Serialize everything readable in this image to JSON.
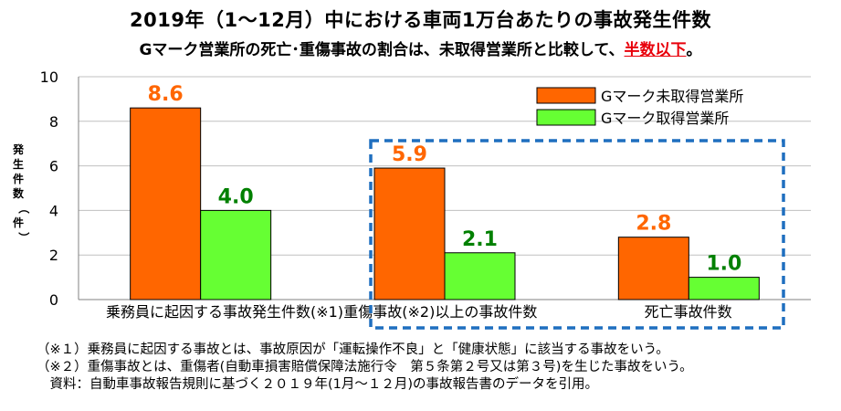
{
  "title": "2019年（1～12月）中における車両1万台あたりの事故発生件数",
  "subtitle_prefix": "Gマーク営業所の死亡･重傷事故の割合は、未取得営業所と比較して、",
  "subtitle_highlight": "半数以下",
  "subtitle_suffix": "。",
  "colors": {
    "series1": "#ff6600",
    "series2": "#66ff33",
    "label1": "#ff6600",
    "label2": "#008000",
    "highlight": "#e8000b",
    "box": "#1f6fbf"
  },
  "chart_data": {
    "type": "bar",
    "categories": [
      "乗務員に起因する事故発生件数(※1)",
      "重傷事故(※2)以上の事故件数",
      "死亡事故件数"
    ],
    "series": [
      {
        "name": "Gマーク未取得営業所",
        "values": [
          8.6,
          5.9,
          2.8
        ],
        "labels": [
          "8.6",
          "5.9",
          "2.8"
        ]
      },
      {
        "name": "Gマーク取得営業所",
        "values": [
          4.0,
          2.1,
          1.0
        ],
        "labels": [
          "4.0",
          "2.1",
          "1.0"
        ]
      }
    ],
    "ylabel": "発生件数（件）",
    "ylim": [
      0,
      10
    ],
    "yticks": [
      0,
      2,
      4,
      6,
      8,
      10
    ],
    "grid": true,
    "legend": "top-right",
    "highlight_box": "around categories 2-3"
  },
  "notes": [
    "（※１）乗務員に起因する事故とは、事故原因が「運転操作不良」と「健康状態」に該当する事故をいう。",
    "（※２）重傷事故とは、重傷者(自動車損害賠償保障法施行令　第５条第２号又は第３号)を生じた事故をいう。",
    "　資料：自動車事故報告規則に基づく２０１９年(1月～１２月)の事故報告書のデータを引用。"
  ]
}
